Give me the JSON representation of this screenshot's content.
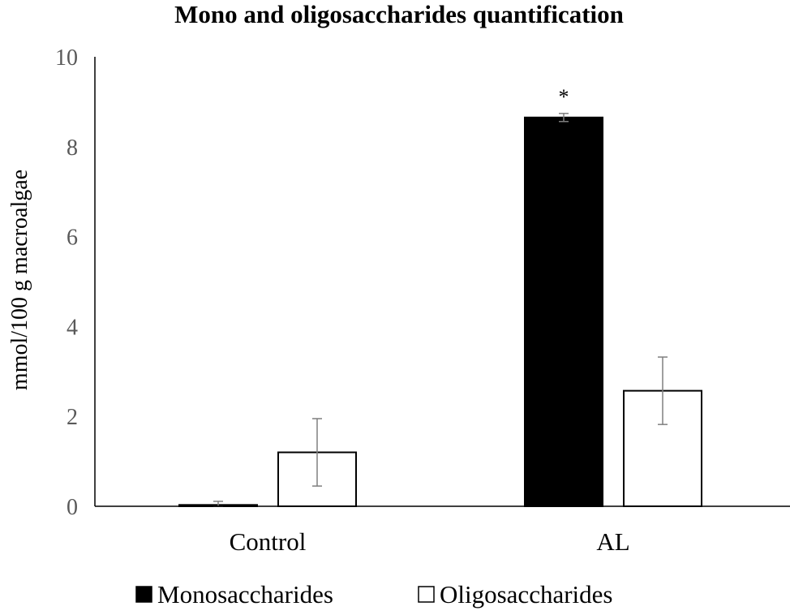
{
  "chart_data": {
    "type": "bar",
    "title": "Mono and oligosaccharides quantification",
    "xlabel": "",
    "ylabel": "mmol/100 g macroalgae",
    "ylim": [
      0,
      10
    ],
    "yticks": [
      0,
      2,
      4,
      6,
      8,
      10
    ],
    "categories": [
      "Control",
      "AL"
    ],
    "series": [
      {
        "name": "Monosaccharides",
        "color": "#000000",
        "values": [
          0.03,
          8.65
        ],
        "errors": [
          0.08,
          0.09
        ]
      },
      {
        "name": "Oligosaccharides",
        "color": "#ffffff",
        "values": [
          1.2,
          2.57
        ],
        "errors": [
          0.75,
          0.75
        ]
      }
    ],
    "annotations": [
      {
        "text": "*",
        "category": "AL",
        "series": "Monosaccharides"
      }
    ],
    "grid": false,
    "legend": "bottom"
  }
}
